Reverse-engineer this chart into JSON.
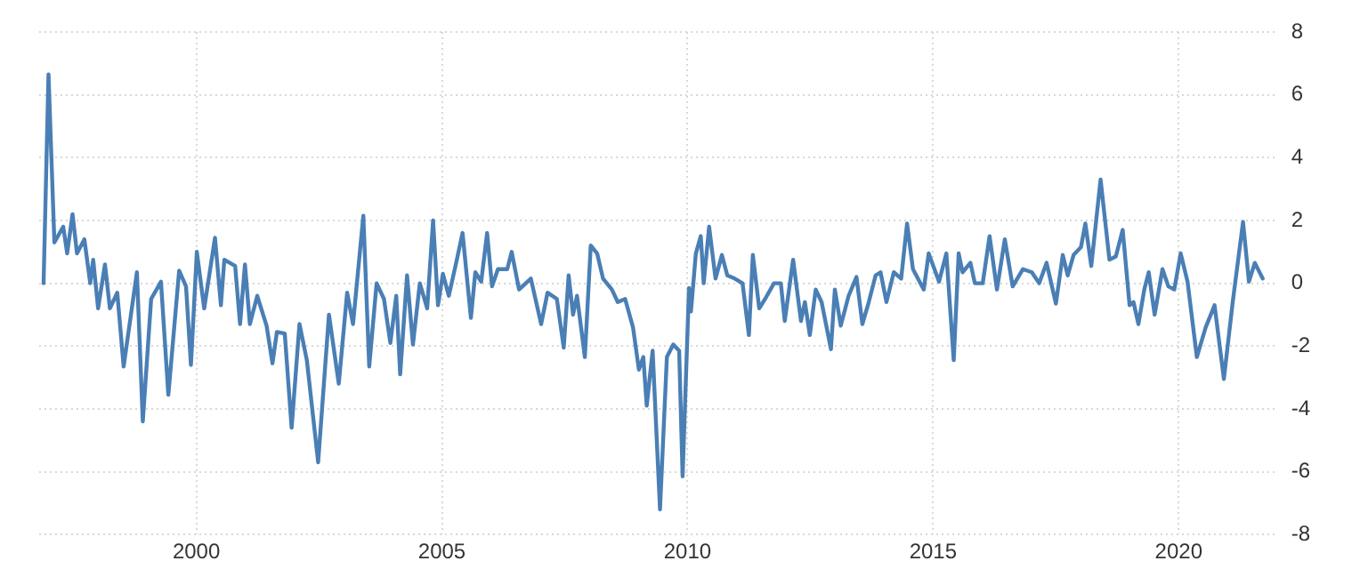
{
  "chart_data": {
    "type": "line",
    "xlim": [
      1996.8,
      2022.0
    ],
    "xticks": [
      2000,
      2005,
      2010,
      2015,
      2020
    ],
    "ylim": [
      -8,
      8
    ],
    "yticks": [
      -8,
      -6,
      -4,
      -2,
      0,
      2,
      4,
      6,
      8
    ],
    "grid": true,
    "legend": false,
    "marker": "none",
    "line_style": "solid",
    "series": [
      {
        "color": "#4a7fb5",
        "x": [
          1996.89,
          1996.99,
          1997.11,
          1997.29,
          1997.37,
          1997.48,
          1997.57,
          1997.72,
          1997.84,
          1997.9,
          1998.0,
          1998.14,
          1998.24,
          1998.39,
          1998.52,
          1998.79,
          1998.91,
          1999.08,
          1999.28,
          1999.43,
          1999.65,
          1999.79,
          1999.89,
          2000.01,
          2000.16,
          2000.38,
          2000.5,
          2000.57,
          2000.79,
          2000.89,
          2000.99,
          2001.09,
          2001.24,
          2001.43,
          2001.55,
          2001.64,
          2001.8,
          2001.94,
          2002.1,
          2002.25,
          2002.48,
          2002.7,
          2002.9,
          2003.07,
          2003.19,
          2003.4,
          2003.52,
          2003.67,
          2003.82,
          2003.95,
          2004.07,
          2004.15,
          2004.29,
          2004.41,
          2004.55,
          2004.7,
          2004.82,
          2004.92,
          2005.02,
          2005.14,
          2005.29,
          2005.42,
          2005.59,
          2005.68,
          2005.8,
          2005.92,
          2006.02,
          2006.14,
          2006.33,
          2006.42,
          2006.57,
          2006.81,
          2007.02,
          2007.15,
          2007.34,
          2007.48,
          2007.58,
          2007.67,
          2007.75,
          2007.91,
          2008.03,
          2008.16,
          2008.28,
          2008.46,
          2008.58,
          2008.73,
          2008.89,
          2009.01,
          2009.1,
          2009.17,
          2009.29,
          2009.44,
          2009.58,
          2009.71,
          2009.83,
          2009.9,
          2010.03,
          2010.07,
          2010.17,
          2010.27,
          2010.33,
          2010.44,
          2010.57,
          2010.7,
          2010.81,
          2010.96,
          2011.12,
          2011.25,
          2011.33,
          2011.46,
          2011.58,
          2011.76,
          2011.9,
          2011.98,
          2012.15,
          2012.31,
          2012.39,
          2012.49,
          2012.61,
          2012.73,
          2012.92,
          2013.0,
          2013.12,
          2013.28,
          2013.44,
          2013.56,
          2013.69,
          2013.83,
          2013.93,
          2014.05,
          2014.2,
          2014.35,
          2014.47,
          2014.59,
          2014.81,
          2014.91,
          2015.12,
          2015.27,
          2015.42,
          2015.52,
          2015.6,
          2015.76,
          2015.85,
          2016.01,
          2016.15,
          2016.3,
          2016.46,
          2016.62,
          2016.83,
          2017.01,
          2017.16,
          2017.31,
          2017.5,
          2017.64,
          2017.74,
          2017.86,
          2018.01,
          2018.1,
          2018.22,
          2018.41,
          2018.59,
          2018.72,
          2018.86,
          2019.0,
          2019.08,
          2019.18,
          2019.3,
          2019.39,
          2019.51,
          2019.67,
          2019.79,
          2019.91,
          2020.04,
          2020.18,
          2020.37,
          2020.55,
          2020.73,
          2020.92,
          2021.1,
          2021.31,
          2021.43,
          2021.55,
          2021.71
        ],
        "values": [
          0,
          6.65,
          1.3,
          1.8,
          0.95,
          2.2,
          0.95,
          1.4,
          0,
          0.75,
          -0.8,
          0.6,
          -0.8,
          -0.3,
          -2.65,
          0.35,
          -4.4,
          -0.5,
          0.05,
          -3.55,
          0.4,
          -0.1,
          -2.6,
          1.0,
          -0.8,
          1.45,
          -0.7,
          0.75,
          0.55,
          -1.3,
          0.6,
          -1.3,
          -0.4,
          -1.35,
          -2.55,
          -1.55,
          -1.6,
          -4.6,
          -1.3,
          -2.45,
          -5.7,
          -1.0,
          -3.2,
          -0.3,
          -1.3,
          2.15,
          -2.65,
          0,
          -0.5,
          -1.9,
          -0.4,
          -2.9,
          0.25,
          -1.95,
          0,
          -0.8,
          2.0,
          -0.7,
          0.3,
          -0.4,
          0.65,
          1.6,
          -1.1,
          0.35,
          0.05,
          1.6,
          -0.1,
          0.45,
          0.45,
          1.0,
          -0.2,
          0.15,
          -1.3,
          -0.3,
          -0.5,
          -2.05,
          0.25,
          -1.0,
          -0.4,
          -2.35,
          1.2,
          0.95,
          0.15,
          -0.2,
          -0.6,
          -0.5,
          -1.4,
          -2.75,
          -2.35,
          -3.9,
          -2.15,
          -7.2,
          -2.35,
          -1.95,
          -2.15,
          -6.15,
          -0.15,
          -0.9,
          0.95,
          1.5,
          0,
          1.8,
          0.15,
          0.9,
          0.25,
          0.15,
          0,
          -1.65,
          0.9,
          -0.8,
          -0.5,
          0,
          0,
          -1.2,
          0.75,
          -1.2,
          -0.6,
          -1.65,
          -0.2,
          -0.6,
          -2.1,
          -0.2,
          -1.35,
          -0.4,
          0.2,
          -1.3,
          -0.6,
          0.25,
          0.35,
          -0.6,
          0.35,
          0.15,
          1.9,
          0.45,
          -0.2,
          0.95,
          0.05,
          0.95,
          -2.45,
          0.95,
          0.35,
          0.65,
          0,
          0,
          1.5,
          -0.2,
          1.4,
          -0.1,
          0.45,
          0.35,
          0,
          0.65,
          -0.65,
          0.9,
          0.25,
          0.9,
          1.15,
          1.9,
          0.55,
          3.3,
          0.75,
          0.85,
          1.7,
          -0.7,
          -0.6,
          -1.3,
          -0.2,
          0.35,
          -1.0,
          0.45,
          -0.1,
          -0.2,
          0.95,
          0.05,
          -2.35,
          -1.4,
          -0.7,
          -3.05,
          -0.6,
          1.95,
          0.05,
          0.65,
          0.15
        ]
      }
    ]
  }
}
